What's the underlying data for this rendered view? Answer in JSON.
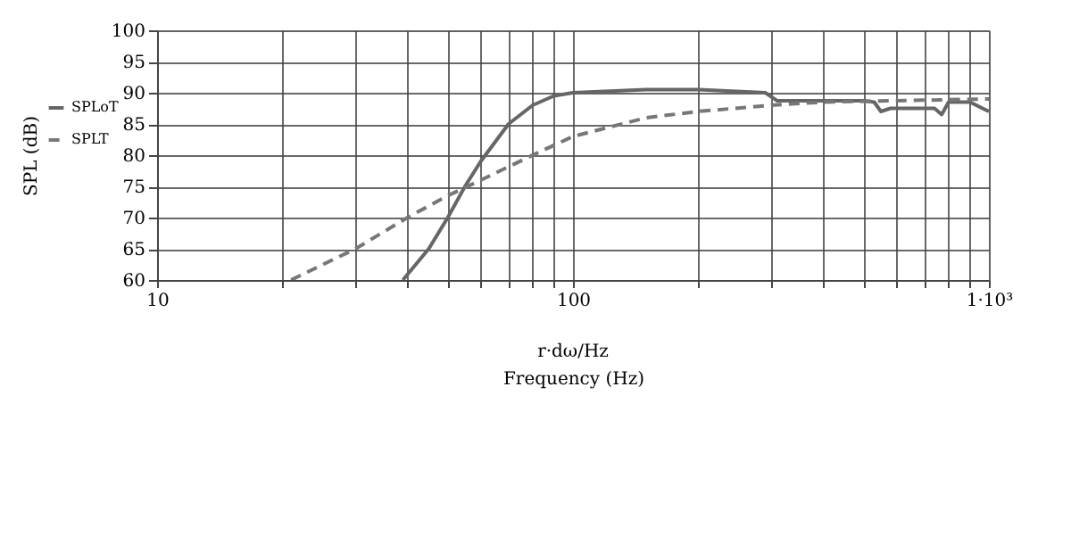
{
  "chart_data": {
    "type": "line",
    "xlabel": "Frequency (Hz)",
    "ylabel": "SPL (dB)",
    "annotations": [
      "r·dω/Hz"
    ],
    "log": "x",
    "xlim": [
      10,
      1000
    ],
    "ylim": [
      60,
      100
    ],
    "xticks": [
      10,
      {
        "value": 20,
        "label": null
      },
      {
        "value": 30,
        "label": null
      },
      {
        "value": 40,
        "label": null
      },
      {
        "value": 50,
        "label": null
      },
      {
        "value": 60,
        "label": null
      },
      {
        "value": 70,
        "label": null
      },
      {
        "value": 80,
        "label": null
      },
      {
        "value": 90,
        "label": null
      },
      100,
      {
        "value": 200,
        "label": null
      },
      {
        "value": 300,
        "label": null
      },
      {
        "value": 400,
        "label": null
      },
      {
        "value": 500,
        "label": null
      },
      {
        "value": 600,
        "label": null
      },
      {
        "value": 700,
        "label": null
      },
      {
        "value": 800,
        "label": null
      },
      {
        "value": 900,
        "label": null
      },
      {
        "value": 1000,
        "label": "1·10³"
      }
    ],
    "yticks": [
      60,
      65,
      70,
      75,
      80,
      85,
      90,
      95,
      100
    ],
    "grid": true,
    "legend": "left",
    "marker": "none",
    "series": [
      {
        "name": "SPLoT",
        "color": "#666666",
        "line_style": "solid",
        "x": [
          39,
          45,
          50,
          55,
          60,
          70,
          80,
          90,
          100,
          150,
          200,
          290,
          310,
          500,
          530,
          550,
          580,
          740,
          770,
          800,
          900,
          1000
        ],
        "values": [
          60,
          65,
          70,
          75,
          79,
          85,
          88,
          89.5,
          90,
          90.5,
          90.5,
          90,
          88.7,
          88.7,
          88.5,
          87,
          87.5,
          87.5,
          86.5,
          88.5,
          88.5,
          87
        ]
      },
      {
        "name": "SPLT",
        "color": "#777777",
        "line_style": "dashed",
        "x": [
          21,
          30,
          40,
          50,
          60,
          80,
          100,
          150,
          200,
          300,
          400,
          1000
        ],
        "values": [
          60,
          65,
          70,
          73.5,
          76,
          80,
          83,
          86,
          87,
          88,
          88.5,
          89
        ]
      }
    ]
  }
}
